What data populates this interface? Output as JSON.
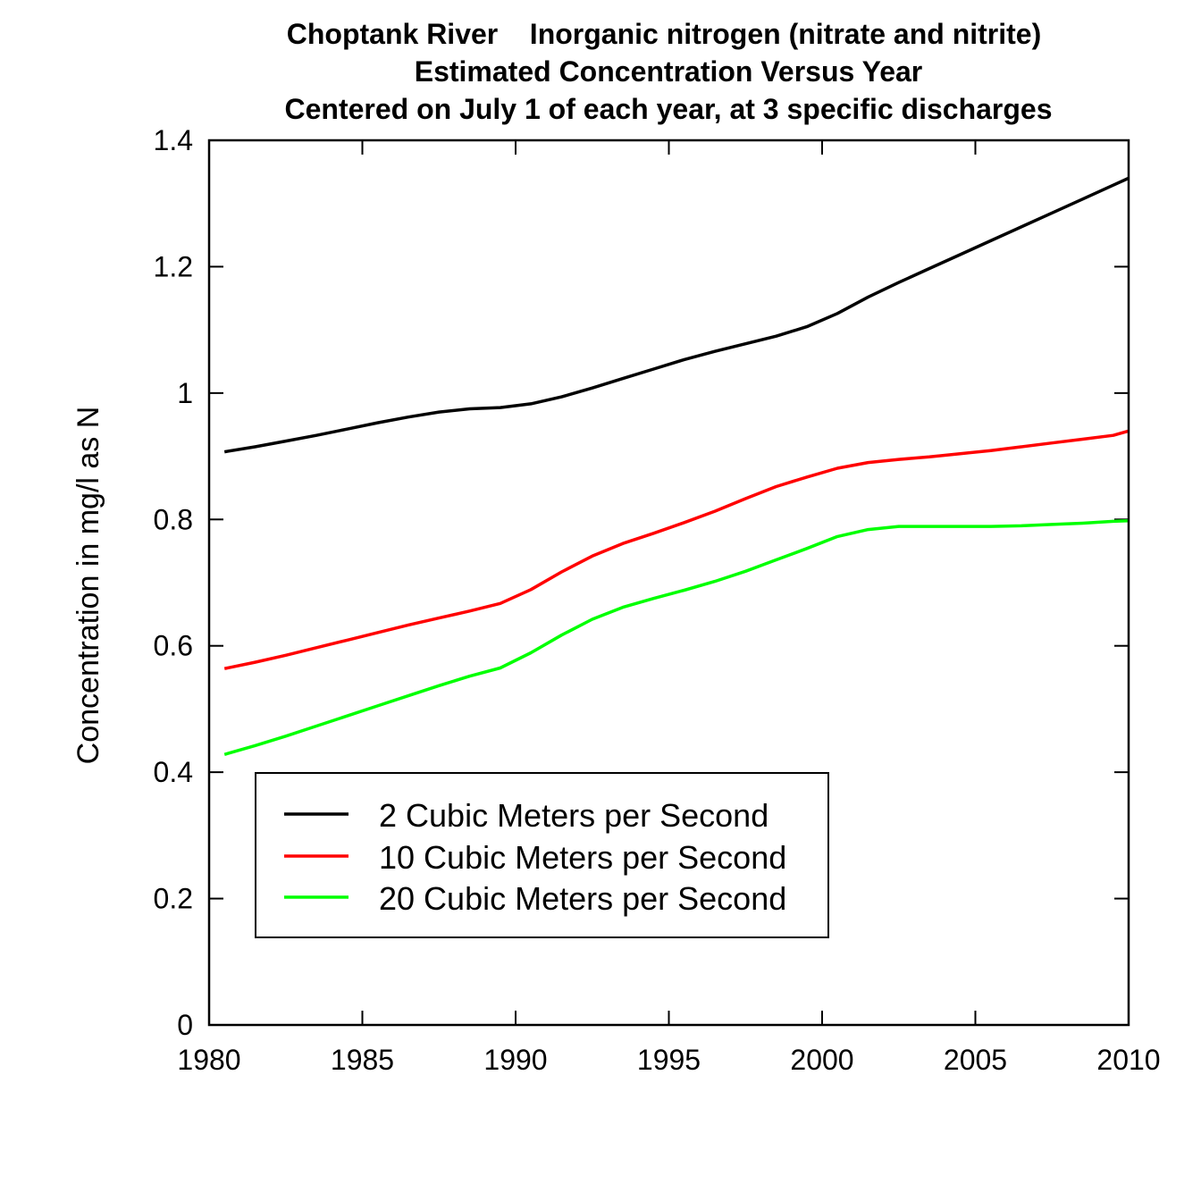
{
  "chart_data": {
    "type": "line",
    "title": [
      "Choptank River    Inorganic nitrogen (nitrate and nitrite)",
      "Estimated Concentration Versus Year",
      "Centered on July 1 of each year, at 3 specific discharges"
    ],
    "xlabel": "",
    "ylabel": "Concentration in mg/l as N",
    "xlim": [
      1980,
      2010
    ],
    "ylim": [
      0,
      1.4
    ],
    "x_ticks": [
      "1980",
      "1985",
      "1990",
      "1995",
      "2000",
      "2005",
      "2010"
    ],
    "y_ticks": [
      "0",
      "0.2",
      "0.4",
      "0.6",
      "0.8",
      "1",
      "1.2",
      "1.4"
    ],
    "grid": false,
    "legend_position": "lower-left",
    "x": [
      1980.5,
      1981.5,
      1982.5,
      1983.5,
      1984.5,
      1985.5,
      1986.5,
      1987.5,
      1988.5,
      1989.5,
      1990.5,
      1991.5,
      1992.5,
      1993.5,
      1994.5,
      1995.5,
      1996.5,
      1997.5,
      1998.5,
      1999.5,
      2000.5,
      2001.5,
      2002.5,
      2003.5,
      2004.5,
      2005.5,
      2006.5,
      2007.5,
      2008.5,
      2009.5,
      2010
    ],
    "series": [
      {
        "name": "2 Cubic Meters per Second",
        "color": "#000000",
        "values": [
          0.907,
          0.915,
          0.924,
          0.933,
          0.943,
          0.953,
          0.962,
          0.97,
          0.975,
          0.977,
          0.983,
          0.994,
          1.008,
          1.023,
          1.038,
          1.053,
          1.066,
          1.078,
          1.09,
          1.105,
          1.126,
          1.152,
          1.175,
          1.197,
          1.219,
          1.241,
          1.263,
          1.285,
          1.307,
          1.329,
          1.34
        ]
      },
      {
        "name": "10 Cubic Meters per Second",
        "color": "#ff0000",
        "values": [
          0.564,
          0.574,
          0.585,
          0.597,
          0.609,
          0.621,
          0.633,
          0.644,
          0.655,
          0.667,
          0.689,
          0.717,
          0.742,
          0.762,
          0.778,
          0.795,
          0.813,
          0.833,
          0.852,
          0.867,
          0.881,
          0.89,
          0.895,
          0.899,
          0.904,
          0.909,
          0.915,
          0.921,
          0.927,
          0.933,
          0.94
        ]
      },
      {
        "name": "20 Cubic Meters per Second",
        "color": "#00ff00",
        "values": [
          0.428,
          0.442,
          0.457,
          0.473,
          0.489,
          0.505,
          0.521,
          0.537,
          0.552,
          0.565,
          0.589,
          0.617,
          0.642,
          0.661,
          0.675,
          0.688,
          0.702,
          0.718,
          0.736,
          0.754,
          0.773,
          0.784,
          0.789,
          0.789,
          0.789,
          0.789,
          0.79,
          0.792,
          0.794,
          0.797,
          0.798
        ]
      }
    ]
  }
}
